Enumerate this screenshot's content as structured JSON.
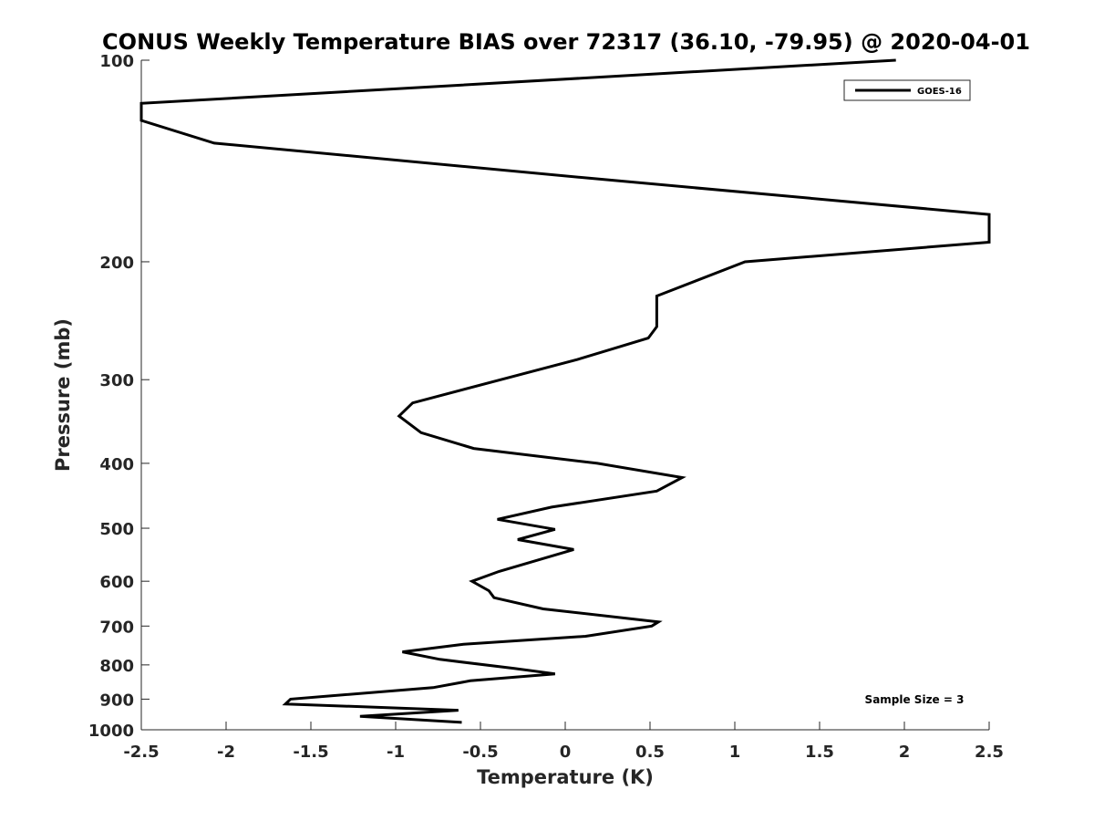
{
  "chart_data": {
    "type": "line",
    "title": "CONUS Weekly Temperature BIAS over 72317 (36.10, -79.95) @ 2020-04-01",
    "xlabel": "Temperature (K)",
    "ylabel": "Pressure (mb)",
    "xlim": [
      -2.5,
      2.5
    ],
    "ylim": [
      100,
      1000
    ],
    "y_scale": "log",
    "y_reversed": true,
    "grid": false,
    "legend_position": "top-right",
    "annotation": "Sample Size = 3",
    "x_ticks": [
      -2.5,
      -2,
      -1.5,
      -1,
      -0.5,
      0,
      0.5,
      1,
      1.5,
      2,
      2.5
    ],
    "x_tick_labels": [
      "-2.5",
      "-2",
      "-1.5",
      "-1",
      "-0.5",
      "0",
      "0.5",
      "1",
      "1.5",
      "2",
      "2.5"
    ],
    "y_ticks": [
      100,
      200,
      300,
      400,
      500,
      600,
      700,
      800,
      900,
      1000
    ],
    "y_tick_labels": [
      "100",
      "200",
      "300",
      "400",
      "500",
      "600",
      "700",
      "800",
      "900",
      "1000"
    ],
    "series": [
      {
        "name": "GOES-16",
        "color": "#000000",
        "points": [
          {
            "t": 1.95,
            "p": 100
          },
          {
            "t": -2.5,
            "p": 116
          },
          {
            "t": -2.5,
            "p": 123
          },
          {
            "t": -2.07,
            "p": 133
          },
          {
            "t": 0.14,
            "p": 150
          },
          {
            "t": 2.5,
            "p": 170
          },
          {
            "t": 2.5,
            "p": 187
          },
          {
            "t": 1.06,
            "p": 200
          },
          {
            "t": 0.54,
            "p": 225
          },
          {
            "t": 0.54,
            "p": 250
          },
          {
            "t": 0.49,
            "p": 260
          },
          {
            "t": 0.07,
            "p": 280
          },
          {
            "t": -0.9,
            "p": 325
          },
          {
            "t": -0.98,
            "p": 340
          },
          {
            "t": -0.85,
            "p": 360
          },
          {
            "t": -0.54,
            "p": 380
          },
          {
            "t": 0.19,
            "p": 400
          },
          {
            "t": 0.69,
            "p": 420
          },
          {
            "t": 0.54,
            "p": 440
          },
          {
            "t": -0.08,
            "p": 465
          },
          {
            "t": -0.4,
            "p": 485
          },
          {
            "t": -0.06,
            "p": 502
          },
          {
            "t": -0.28,
            "p": 520
          },
          {
            "t": 0.05,
            "p": 538
          },
          {
            "t": -0.39,
            "p": 580
          },
          {
            "t": -0.55,
            "p": 600
          },
          {
            "t": -0.45,
            "p": 620
          },
          {
            "t": -0.42,
            "p": 635
          },
          {
            "t": -0.13,
            "p": 660
          },
          {
            "t": 0.55,
            "p": 690
          },
          {
            "t": 0.51,
            "p": 700
          },
          {
            "t": 0.12,
            "p": 725
          },
          {
            "t": -0.6,
            "p": 745
          },
          {
            "t": -0.96,
            "p": 765
          },
          {
            "t": -0.74,
            "p": 785
          },
          {
            "t": -0.3,
            "p": 810
          },
          {
            "t": -0.06,
            "p": 825
          },
          {
            "t": -0.56,
            "p": 845
          },
          {
            "t": -0.78,
            "p": 865
          },
          {
            "t": -1.62,
            "p": 900
          },
          {
            "t": -1.65,
            "p": 915
          },
          {
            "t": -0.63,
            "p": 935
          },
          {
            "t": -1.21,
            "p": 955
          },
          {
            "t": -0.61,
            "p": 975
          }
        ]
      }
    ]
  }
}
